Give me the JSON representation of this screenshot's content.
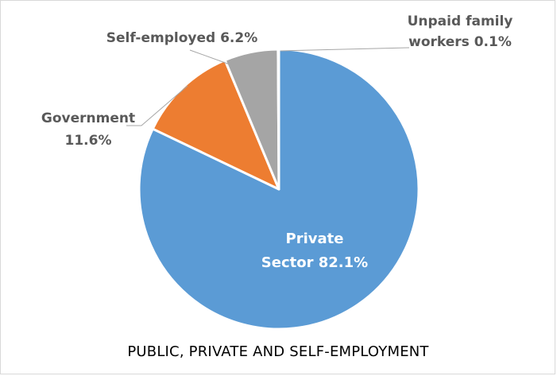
{
  "chart_data": {
    "type": "pie",
    "title": "PUBLIC, PRIVATE AND SELF-EMPLOYMENT",
    "slices": [
      {
        "key": "private",
        "label_lines": [
          "Private",
          "Sector 82.1%"
        ],
        "value": 82.1,
        "color": "#5B9BD5",
        "label_position": "inside"
      },
      {
        "key": "government",
        "label_lines": [
          "Government",
          "11.6%"
        ],
        "value": 11.6,
        "color": "#ED7D31",
        "label_position": "outside"
      },
      {
        "key": "self_employed",
        "label_lines": [
          "Self-employed 6.2%"
        ],
        "value": 6.2,
        "color": "#A5A5A5",
        "label_position": "outside"
      },
      {
        "key": "unpaid_family",
        "label_lines": [
          "Unpaid family",
          "workers 0.1%"
        ],
        "value": 0.1,
        "color": "#FFC000",
        "label_position": "outside"
      }
    ],
    "legend": "none"
  }
}
